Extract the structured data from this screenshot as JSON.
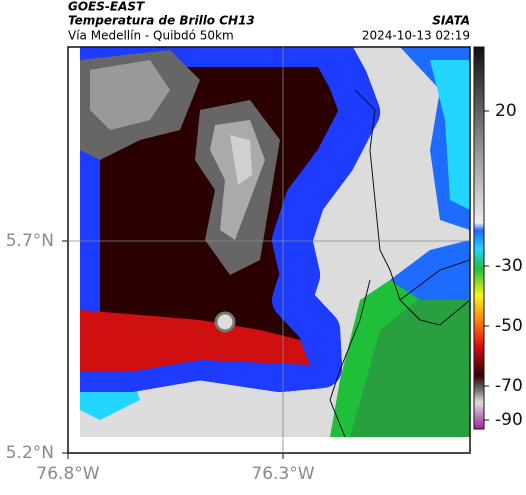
{
  "header": {
    "title": "GOES-EAST",
    "subtitle": "Temperatura de Brillo CH13",
    "region": "Vía Medellín - Quibdó 50km",
    "source": "SIATA",
    "timestamp": "2024-10-13 02:19"
  },
  "axes": {
    "y_labels": [
      "5.7°N",
      "5.2°N"
    ],
    "x_labels": [
      "76.8°W",
      "76.3°W"
    ]
  },
  "colorbar": {
    "ticks": [
      20,
      -30,
      -50,
      -70,
      -90
    ]
  }
}
